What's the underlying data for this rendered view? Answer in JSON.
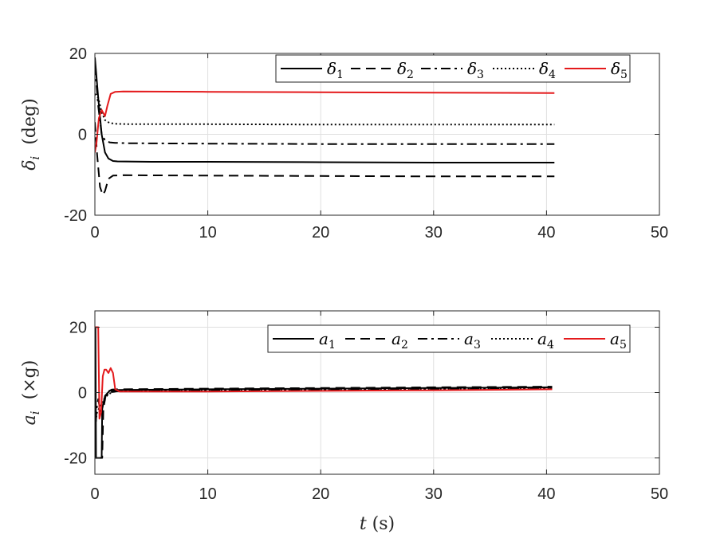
{
  "chart_data": [
    {
      "type": "line",
      "ylabel": "δ_i (deg)",
      "xlabel": "",
      "xlim": [
        0,
        50
      ],
      "ylim": [
        -20,
        20
      ],
      "xticks": [
        0,
        10,
        20,
        30,
        40,
        50
      ],
      "yticks": [
        -20,
        0,
        20
      ],
      "xtick_labels": [
        "0",
        "10",
        "20",
        "30",
        "40",
        "50"
      ],
      "ytick_labels": [
        "-20",
        "0",
        "20"
      ],
      "grid": true,
      "legend_position": "top-right",
      "series": [
        {
          "name": "δ1",
          "style": "solid",
          "color": "#000000",
          "x": [
            0,
            0.3,
            0.6,
            0.9,
            1.2,
            1.6,
            2,
            5,
            10,
            20,
            30,
            40.7
          ],
          "y": [
            19,
            9,
            0,
            -4.5,
            -6,
            -6.6,
            -6.7,
            -6.8,
            -6.8,
            -6.9,
            -7,
            -7
          ]
        },
        {
          "name": "δ2",
          "style": "dashed",
          "color": "#000000",
          "x": [
            0,
            0.2,
            0.45,
            0.7,
            0.9,
            1.2,
            1.6,
            2.5,
            10,
            20,
            30,
            40.7
          ],
          "y": [
            3,
            -5,
            -13,
            -15,
            -14,
            -11,
            -10.2,
            -10.1,
            -10.2,
            -10.3,
            -10.4,
            -10.4
          ]
        },
        {
          "name": "δ3",
          "style": "dashdot",
          "color": "#000000",
          "x": [
            0,
            0.3,
            0.6,
            0.9,
            1.3,
            1.8,
            3,
            10,
            20,
            30,
            40.7
          ],
          "y": [
            17,
            7,
            0,
            -1.5,
            -2,
            -2.1,
            -2.2,
            -2.3,
            -2.4,
            -2.4,
            -2.4
          ]
        },
        {
          "name": "δ4",
          "style": "dotted",
          "color": "#000000",
          "x": [
            0,
            0.3,
            0.6,
            0.9,
            1.3,
            1.8,
            3,
            10,
            20,
            30,
            40.7
          ],
          "y": [
            10,
            9,
            5.5,
            3.5,
            2.8,
            2.6,
            2.5,
            2.5,
            2.4,
            2.4,
            2.4
          ]
        },
        {
          "name": "δ5",
          "style": "solid",
          "color": "#e41a1c",
          "x": [
            0,
            0.15,
            0.35,
            0.6,
            0.9,
            1.1,
            1.4,
            1.8,
            2.5,
            10,
            20,
            30,
            40.7
          ],
          "y": [
            -4.5,
            -2,
            4,
            6,
            4.5,
            7,
            10,
            10.5,
            10.6,
            10.5,
            10.4,
            10.3,
            10.2
          ]
        }
      ]
    },
    {
      "type": "line",
      "ylabel": "a_i (×g)",
      "xlabel": "t (s)",
      "xlim": [
        0,
        50
      ],
      "ylim": [
        -25,
        25
      ],
      "xticks": [
        0,
        10,
        20,
        30,
        40,
        50
      ],
      "yticks": [
        -20,
        0,
        20
      ],
      "xtick_labels": [
        "0",
        "10",
        "20",
        "30",
        "40",
        "50"
      ],
      "ytick_labels": [
        "-20",
        "0",
        "20"
      ],
      "grid": true,
      "legend_position": "top-right",
      "series": [
        {
          "name": "a1",
          "style": "solid",
          "color": "#000000",
          "x": [
            0,
            0.05,
            0.1,
            0.2,
            0.25,
            0.6,
            0.65,
            0.9,
            1.3,
            2,
            10,
            20,
            30,
            40.5
          ],
          "y": [
            -20,
            20,
            -20,
            -20,
            -20,
            -20,
            -5,
            -1,
            0.5,
            0.8,
            1.0,
            1.2,
            1.4,
            1.6
          ]
        },
        {
          "name": "a2",
          "style": "dashed",
          "color": "#000000",
          "x": [
            0,
            0.1,
            0.2,
            0.4,
            0.65,
            0.75,
            1.0,
            1.5,
            2,
            10,
            20,
            30,
            40.5
          ],
          "y": [
            -20,
            -20,
            -20,
            -20,
            -20,
            -5,
            0,
            0.9,
            1.0,
            1.2,
            1.4,
            1.6,
            1.8
          ]
        },
        {
          "name": "a3",
          "style": "dashdot",
          "color": "#000000",
          "x": [
            0,
            0.15,
            0.3,
            0.5,
            0.8,
            1.2,
            2,
            10,
            20,
            30,
            40.5
          ],
          "y": [
            -15,
            -5,
            -2,
            -6,
            -3,
            0,
            0.4,
            0.6,
            0.8,
            1.0,
            1.2
          ]
        },
        {
          "name": "a4",
          "style": "dotted",
          "color": "#000000",
          "x": [
            0,
            0.2,
            0.5,
            0.8,
            1.2,
            1.6,
            2.2,
            10,
            20,
            30,
            40.5
          ],
          "y": [
            -10,
            -6,
            -4,
            -2,
            -0.5,
            0.2,
            0.5,
            0.6,
            0.8,
            1.0,
            1.2
          ]
        },
        {
          "name": "a5",
          "style": "solid",
          "color": "#e41a1c",
          "x": [
            0,
            0.1,
            0.2,
            0.3,
            0.4,
            0.55,
            0.7,
            0.85,
            1.0,
            1.2,
            1.4,
            1.6,
            1.8,
            2.2,
            3,
            10,
            20,
            30,
            40.5
          ],
          "y": [
            20,
            20,
            20,
            20,
            -8,
            -6,
            5,
            7,
            7,
            6,
            7.5,
            6,
            1,
            0.3,
            0.3,
            0.3,
            0.5,
            0.7,
            1.0
          ]
        }
      ]
    }
  ]
}
